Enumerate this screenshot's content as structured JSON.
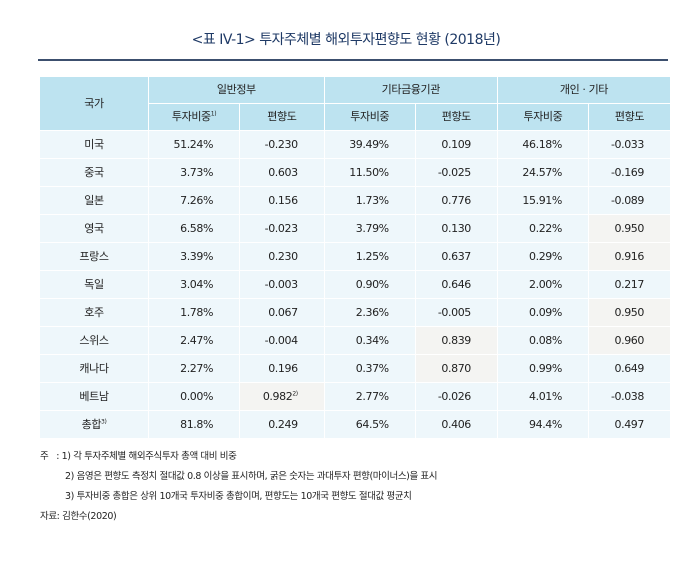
{
  "title": "<표 IV-1> 투자주체별 해외투자편향도 현황 (2018년)",
  "headers": {
    "country": "국가",
    "groups": [
      "일반정부",
      "기타금융기관",
      "개인 · 기타"
    ],
    "share": "투자비중",
    "share_note": "1)",
    "bias": "편향도"
  },
  "rows": [
    {
      "country": "미국",
      "note": "",
      "values": [
        "51.24%",
        "-0.230",
        "39.49%",
        "0.109",
        "46.18%",
        "-0.033"
      ],
      "shaded": []
    },
    {
      "country": "중국",
      "note": "",
      "values": [
        "3.73%",
        "0.603",
        "11.50%",
        "-0.025",
        "24.57%",
        "-0.169"
      ],
      "shaded": []
    },
    {
      "country": "일본",
      "note": "",
      "values": [
        "7.26%",
        "0.156",
        "1.73%",
        "0.776",
        "15.91%",
        "-0.089"
      ],
      "shaded": []
    },
    {
      "country": "영국",
      "note": "",
      "values": [
        "6.58%",
        "-0.023",
        "3.79%",
        "0.130",
        "0.22%",
        "0.950"
      ],
      "shaded": [
        5
      ]
    },
    {
      "country": "프랑스",
      "note": "",
      "values": [
        "3.39%",
        "0.230",
        "1.25%",
        "0.637",
        "0.29%",
        "0.916"
      ],
      "shaded": [
        5
      ]
    },
    {
      "country": "독일",
      "note": "",
      "values": [
        "3.04%",
        "-0.003",
        "0.90%",
        "0.646",
        "2.00%",
        "0.217"
      ],
      "shaded": []
    },
    {
      "country": "호주",
      "note": "",
      "values": [
        "1.78%",
        "0.067",
        "2.36%",
        "-0.005",
        "0.09%",
        "0.950"
      ],
      "shaded": [
        5
      ]
    },
    {
      "country": "스위스",
      "note": "",
      "values": [
        "2.47%",
        "-0.004",
        "0.34%",
        "0.839",
        "0.08%",
        "0.960"
      ],
      "shaded": [
        3,
        5
      ]
    },
    {
      "country": "캐나다",
      "note": "",
      "values": [
        "2.27%",
        "0.196",
        "0.37%",
        "0.870",
        "0.99%",
        "0.649"
      ],
      "shaded": [
        3
      ]
    },
    {
      "country": "베트남",
      "note": "",
      "values": [
        "0.00%",
        "0.982",
        "2.77%",
        "-0.026",
        "4.01%",
        "-0.038"
      ],
      "shaded": [
        1
      ],
      "value_note": "2)"
    },
    {
      "country": "총합",
      "note": "3)",
      "values": [
        "81.8%",
        "0.249",
        "64.5%",
        "0.406",
        "94.4%",
        "0.497"
      ],
      "shaded": []
    }
  ],
  "notes": {
    "label": "주",
    "items": [
      ": 1) 각 투자주체별 해외주식투자 총액 대비 비중",
      "2) 음영은 편향도 측정치 절대값 0.8 이상을 표시하며, 굵은 숫자는 과대투자 편향(마이너스)을 표시",
      "3) 투자비중 총합은 상위 10개국 투자비중 총합이며, 편향도는 10개국 편향도 절대값 평균치"
    ],
    "source": "자료: 김한수(2020)"
  },
  "colors": {
    "header": "#bde3f0",
    "row": "#eef7fb",
    "shaded": "#f4f4f2",
    "title": "#1f3a66"
  }
}
